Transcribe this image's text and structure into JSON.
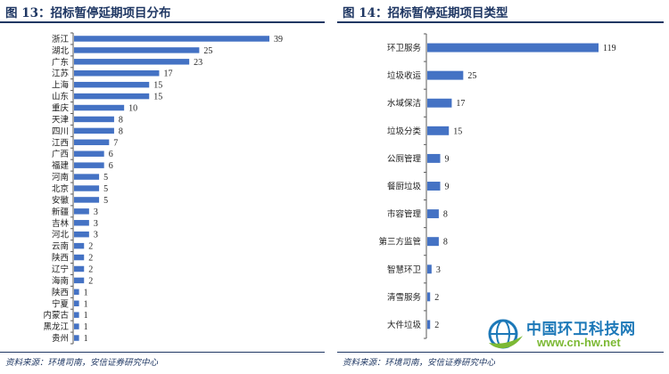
{
  "left": {
    "title": "图 13：招标暂停延期项目分布",
    "source": "资料来源：环境司南，安信证券研究中心"
  },
  "right": {
    "title": "图 14：招标暂停延期项目类型",
    "source": "资料来源：环境司南，安信证券研究中心"
  },
  "watermark": {
    "name": "中国环卫科技网",
    "url": "www.cn-hw.net"
  },
  "colors": {
    "bar": "#4472c4",
    "title": "#1f3763",
    "axis": "#595959"
  },
  "chart_data": [
    {
      "type": "bar",
      "orientation": "horizontal",
      "title": "图 13：招标暂停延期项目分布",
      "categories": [
        "浙江",
        "湖北",
        "广东",
        "江苏",
        "上海",
        "山东",
        "重庆",
        "天津",
        "四川",
        "江西",
        "广西",
        "福建",
        "河南",
        "北京",
        "安徽",
        "新疆",
        "吉林",
        "河北",
        "云南",
        "陕西",
        "辽宁",
        "海南",
        "陕西",
        "宁夏",
        "内蒙古",
        "黑龙江",
        "贵州"
      ],
      "values": [
        39,
        25,
        23,
        17,
        15,
        15,
        10,
        8,
        8,
        7,
        6,
        6,
        5,
        5,
        5,
        3,
        3,
        3,
        2,
        2,
        2,
        2,
        1,
        1,
        1,
        1,
        1
      ],
      "xlim": [
        0,
        39
      ],
      "grid": false,
      "legend": "none"
    },
    {
      "type": "bar",
      "orientation": "horizontal",
      "title": "图 14：招标暂停延期项目类型",
      "categories": [
        "环卫服务",
        "垃圾收运",
        "水域保洁",
        "垃圾分类",
        "公厕管理",
        "餐厨垃圾",
        "市容管理",
        "第三方监管",
        "智慧环卫",
        "清雪服务",
        "大件垃圾"
      ],
      "values": [
        119,
        25,
        17,
        15,
        9,
        9,
        8,
        8,
        3,
        2,
        2
      ],
      "xlim": [
        0,
        119
      ],
      "grid": false,
      "legend": "none"
    }
  ]
}
